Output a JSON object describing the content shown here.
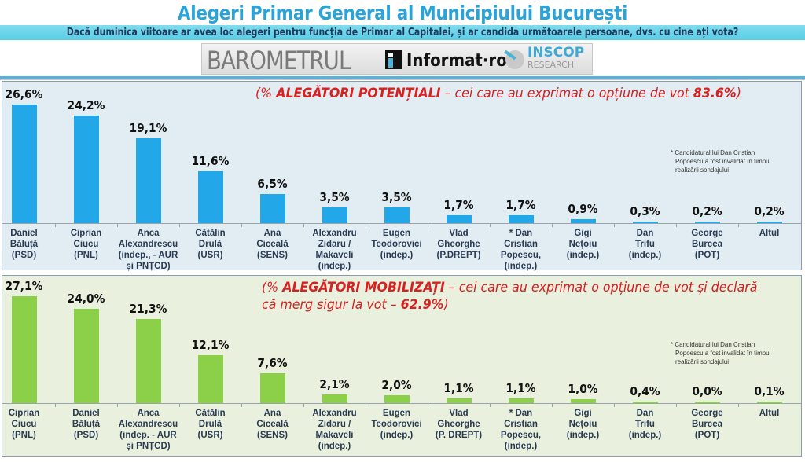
{
  "header": {
    "title": "Alegeri Primar General al Municipiului București",
    "subtitle": "Dacă duminica viitoare ar avea loc alegeri pentru funcția de Primar al Capitalei, și ar candida următoarele persoane, dvs. cu cine ați vota?",
    "logos": {
      "barometrul": "BAROMETRUL",
      "informat": "Informat·ro",
      "inscop": "INSCOP",
      "research": "RESEARCH"
    }
  },
  "colors": {
    "title": "#2aa3d8",
    "subtitle_bar": "#58cde6",
    "top_bar": "#22a7e8",
    "bottom_bar": "#8cd04a",
    "note_red": "#d82020"
  },
  "panels": {
    "top": {
      "note_prefix": "(% ",
      "note_bold": "ALEGĂTORI POTENȚIALI",
      "note_mid": " – cei care au exprimat o opțiune de vot ",
      "note_pct": "83.6%",
      "note_suffix": ")",
      "footnote_line1": "* Candidatural lui Dan Cristian",
      "footnote_line2": "Popoescu a fost invalidat în timpul",
      "footnote_line3": "realizării sondajului"
    },
    "bottom": {
      "note_prefix": "(% ",
      "note_bold": "ALEGĂTORI MOBILIZAȚI",
      "note_mid": " – cei care au exprimat o opțiune de vot și declară că merg sigur la vot – ",
      "note_pct": "62.9%",
      "note_suffix": ")",
      "footnote_line1": "* Candidatural lui Dan Cristian",
      "footnote_line2": "Popoescu a fost invalidat în timpul",
      "footnote_line3": "realizării sondajului"
    }
  },
  "chart_data": [
    {
      "type": "bar",
      "title": "% ALEGĂTORI POTENȚIALI – cei care au exprimat o opțiune de vot 83.6%",
      "xlabel": "",
      "ylabel": "",
      "grid": false,
      "ylim": [
        0,
        30
      ],
      "categories": [
        "Daniel Băluță (PSD)",
        "Ciprian Ciucu (PNL)",
        "Anca Alexandrescu (indep., - AUR și PNȚCD)",
        "Cătălin Drulă (USR)",
        "Ana Ciceală (SENS)",
        "Alexandru Zidaru / Makaveli (indep.)",
        "Eugen Teodorovici (indep.)",
        "Vlad Gheorghe (P.DREPT)",
        "* Dan Cristian Popescu, (indep.)",
        "Gigi Nețoiu (indep.)",
        "Dan Trifu (indep.)",
        "George Burcea (POT)",
        "Altul"
      ],
      "labels": [
        [
          "Daniel",
          "Băluță",
          "(PSD)"
        ],
        [
          "Ciprian",
          "Ciucu",
          "(PNL)"
        ],
        [
          "Anca",
          "Alexandrescu",
          "(indep., - AUR",
          "și PNȚCD)"
        ],
        [
          "Cătălin",
          "Drulă",
          "(USR)"
        ],
        [
          "Ana",
          "Ciceală",
          "(SENS)"
        ],
        [
          "Alexandru",
          "Zidaru /",
          "Makaveli",
          "(indep.)"
        ],
        [
          "Eugen",
          "Teodorovici",
          "(indep.)"
        ],
        [
          "Vlad",
          "Gheorghe",
          "(P.DREPT)"
        ],
        [
          "* Dan",
          "Cristian",
          "Popescu,",
          "(indep.)"
        ],
        [
          "Gigi",
          "Nețoiu",
          "(indep.)"
        ],
        [
          "Dan",
          "Trifu",
          "(indep.)"
        ],
        [
          "George",
          "Burcea",
          "(POT)"
        ],
        [
          "Altul"
        ]
      ],
      "values": [
        26.6,
        24.2,
        19.1,
        11.6,
        6.5,
        3.5,
        3.5,
        1.7,
        1.7,
        0.9,
        0.3,
        0.2,
        0.2
      ],
      "value_labels": [
        "26,6%",
        "24,2%",
        "19,1%",
        "11,6%",
        "6,5%",
        "3,5%",
        "3,5%",
        "1,7%",
        "1,7%",
        "0,9%",
        "0,3%",
        "0,2%",
        "0,2%"
      ],
      "color": "#22a7e8"
    },
    {
      "type": "bar",
      "title": "% ALEGĂTORI MOBILIZAȚI – cei care au exprimat o opțiune de vot și declară că merg sigur la vot – 62.9%",
      "xlabel": "",
      "ylabel": "",
      "grid": false,
      "ylim": [
        0,
        30
      ],
      "categories": [
        "Ciprian Ciucu (PNL)",
        "Daniel Băluță (PSD)",
        "Anca Alexandrescu (indep. - AUR și PNȚCD)",
        "Cătălin Drulă (USR)",
        "Ana Ciceală (SENS)",
        "Alexandru Zidaru / Makaveli (indep.)",
        "Eugen Teodorovici (indep.)",
        "Vlad Gheorghe (P. DREPT)",
        "* Dan Cristian Popescu, (indep.)",
        "Gigi Nețoiu (indep.)",
        "Dan Trifu (indep.)",
        "George Burcea (POT)",
        "Altul"
      ],
      "labels": [
        [
          "Ciprian",
          "Ciucu",
          "(PNL)"
        ],
        [
          "Daniel",
          "Băluță",
          "(PSD)"
        ],
        [
          "Anca",
          "Alexandrescu",
          "(indep. - AUR",
          "și PNȚCD)"
        ],
        [
          "Cătălin",
          "Drulă",
          "(USR)"
        ],
        [
          "Ana",
          "Ciceală",
          "(SENS)"
        ],
        [
          "Alexandru",
          "Zidaru /",
          "Makaveli",
          "(indep.)"
        ],
        [
          "Eugen",
          "Teodorovici",
          "(indep.)"
        ],
        [
          "Vlad",
          "Gheorghe",
          "(P. DREPT)"
        ],
        [
          "* Dan",
          "Cristian",
          "Popescu,",
          "(indep.)"
        ],
        [
          "Gigi",
          "Nețoiu",
          "(indep.)"
        ],
        [
          "Dan",
          "Trifu",
          "(indep.)"
        ],
        [
          "George",
          "Burcea",
          "(POT)"
        ],
        [
          "Altul"
        ]
      ],
      "values": [
        27.1,
        24.0,
        21.3,
        12.1,
        7.6,
        2.1,
        2.0,
        1.1,
        1.1,
        1.0,
        0.4,
        0.0,
        0.1
      ],
      "value_labels": [
        "27,1%",
        "24,0%",
        "21,3%",
        "12,1%",
        "7,6%",
        "2,1%",
        "2,0%",
        "1,1%",
        "1,1%",
        "1,0%",
        "0,4%",
        "0,0%",
        "0,1%"
      ],
      "color": "#8cd04a"
    }
  ]
}
